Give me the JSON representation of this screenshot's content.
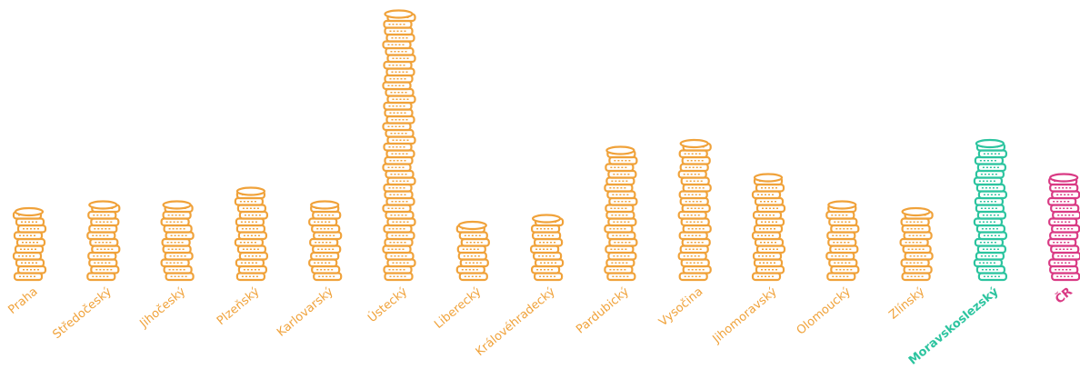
{
  "chart_data": {
    "type": "coin-stack",
    "categories": [
      "Praha",
      "Středočeský",
      "Jihočeský",
      "Plzeňský",
      "Karlovarský",
      "Ústecký",
      "Liberecký",
      "Královéhradecký",
      "Pardubický",
      "Vysočina",
      "Jihomoravský",
      "Olomoucký",
      "Zlínský",
      "Moravskoslezský",
      "ČR"
    ],
    "values": [
      10,
      11,
      11,
      13,
      11,
      39,
      8,
      9,
      19,
      20,
      15,
      11,
      10,
      20,
      15
    ],
    "colors": [
      "#f0a23a",
      "#f0a23a",
      "#f0a23a",
      "#f0a23a",
      "#f0a23a",
      "#f0a23a",
      "#f0a23a",
      "#f0a23a",
      "#f0a23a",
      "#f0a23a",
      "#f0a23a",
      "#f0a23a",
      "#f0a23a",
      "#2cc49f",
      "#d93a84"
    ]
  }
}
